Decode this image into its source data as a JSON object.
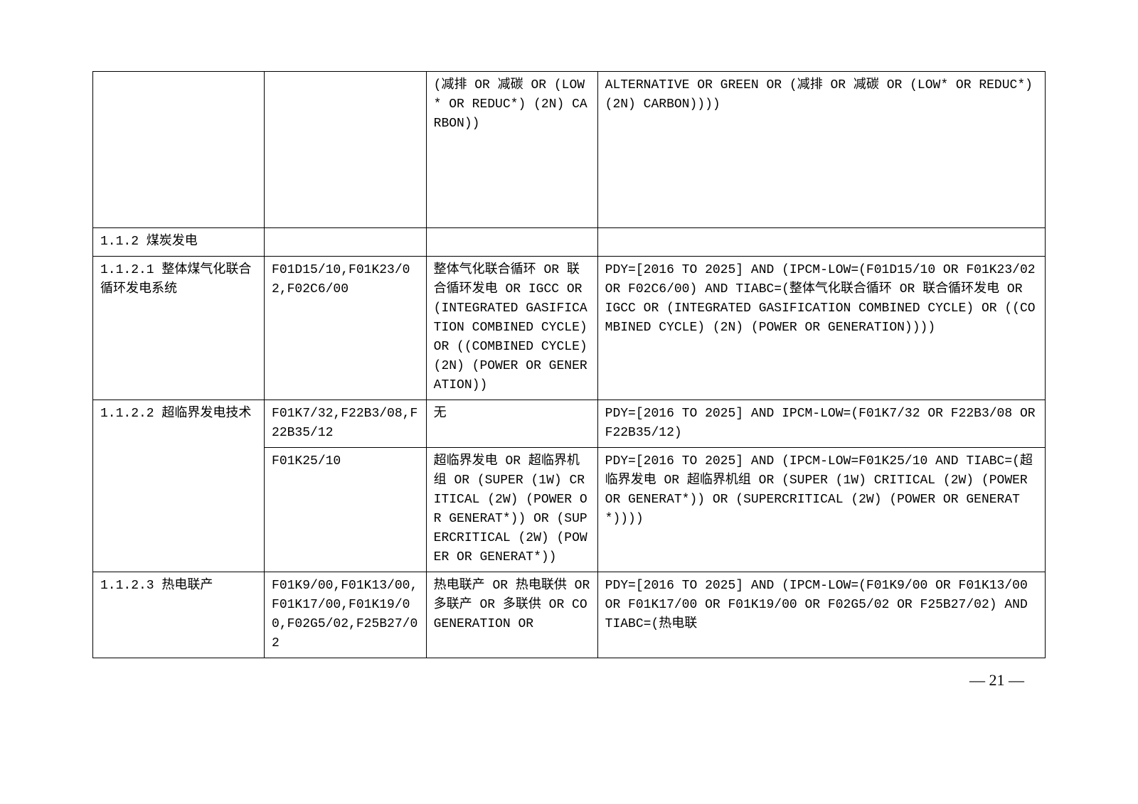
{
  "table": {
    "rows": [
      {
        "c1": "",
        "c2": "",
        "c3": "(减排 OR 减碳 OR (LOW* OR REDUC*) (2N) CARBON))",
        "c4": "ALTERNATIVE OR GREEN OR (减排 OR 减碳 OR (LOW* OR REDUC*) (2N) CARBON))))"
      },
      {
        "c1": "1.1.2 煤炭发电",
        "c2": "",
        "c3": "",
        "c4": ""
      },
      {
        "c1": "1.1.2.1 整体煤气化联合循环发电系统",
        "c2": "F01D15/10,F01K23/02,F02C6/00",
        "c3": "整体气化联合循环 OR 联合循环发电 OR IGCC OR (INTEGRATED GASIFICATION COMBINED CYCLE) OR ((COMBINED CYCLE) (2N) (POWER OR GENERATION))",
        "c4": "PDY=[2016 TO 2025] AND (IPCM-LOW=(F01D15/10 OR F01K23/02 OR F02C6/00)  AND TIABC=(整体气化联合循环 OR 联合循环发电 OR IGCC OR (INTEGRATED GASIFICATION COMBINED CYCLE) OR ((COMBINED CYCLE) (2N) (POWER OR GENERATION))))"
      },
      {
        "c1": "1.1.2.2 超临界发电技术",
        "c2": "F01K7/32,F22B3/08,F22B35/12",
        "c3": "无",
        "c4": "PDY=[2016 TO 2025] AND IPCM-LOW=(F01K7/32 OR F22B3/08 OR F22B35/12)"
      },
      {
        "c1": "",
        "c2": "F01K25/10",
        "c3": "超临界发电 OR 超临界机组 OR (SUPER (1W) CRITICAL (2W) (POWER OR GENERAT*)) OR (SUPERCRITICAL (2W) (POWER OR GENERAT*))",
        "c4": "PDY=[2016 TO 2025] AND (IPCM-LOW=F01K25/10 AND TIABC=(超临界发电 OR 超临界机组 OR (SUPER (1W) CRITICAL (2W) (POWER OR GENERAT*)) OR (SUPERCRITICAL (2W) (POWER OR GENERAT*))))"
      },
      {
        "c1": "1.1.2.3 热电联产",
        "c2": "F01K9/00,F01K13/00,F01K17/00,F01K19/00,F02G5/02,F25B27/02",
        "c3": "热电联产 OR 热电联供 OR 多联产 OR 多联供 OR COGENERATION OR",
        "c4": "PDY=[2016 TO 2025] AND (IPCM-LOW=(F01K9/00 OR F01K13/00 OR F01K17/00 OR F01K19/00 OR F02G5/02 OR F25B27/02)  AND TIABC=(热电联"
      }
    ]
  },
  "pageNumber": "— 21 —"
}
